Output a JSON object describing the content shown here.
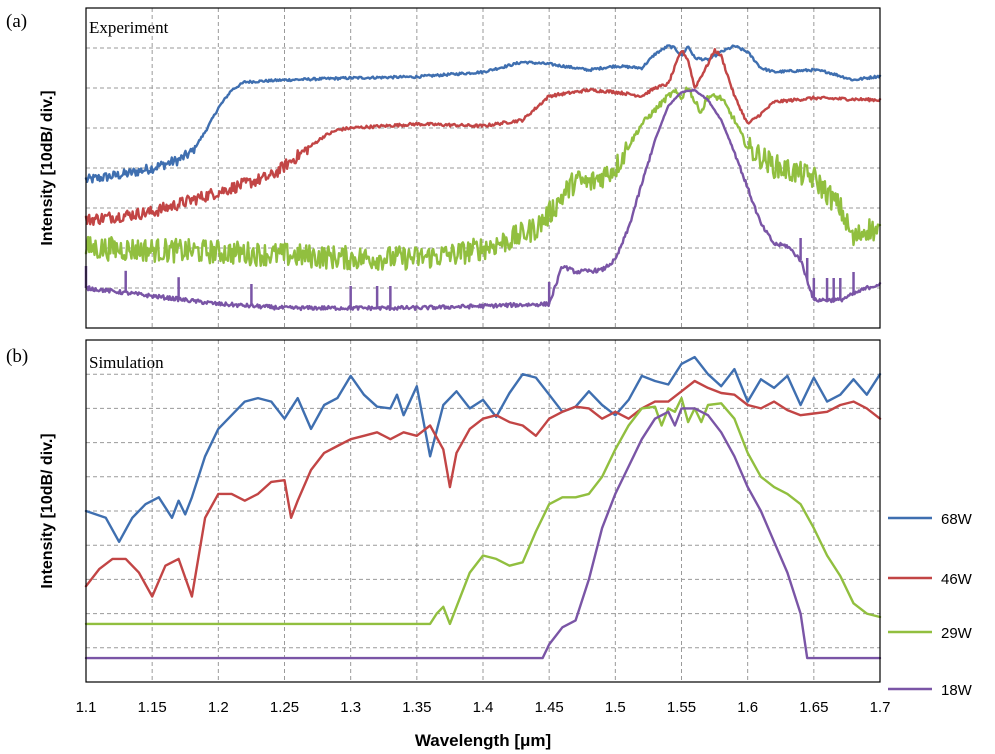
{
  "panels": {
    "a": {
      "letter": "(a)",
      "title": "Experiment"
    },
    "b": {
      "letter": "(b)",
      "title": "Simulation"
    }
  },
  "colors": {
    "68W": "#3f6fb0",
    "46W": "#c24545",
    "29W": "#91bf3f",
    "18W": "#7a55a6"
  },
  "legend": {
    "labels": [
      "68W",
      "46W",
      "29W",
      "18W"
    ]
  },
  "chart_data": [
    {
      "type": "line",
      "panel": "(a)",
      "title": "Experiment",
      "xlabel": "",
      "ylabel": "Intensity [10dB/ div.]",
      "xlim": [
        1.1,
        1.7
      ],
      "ylim": [
        -8,
        0
      ],
      "x_ticks": [
        1.1,
        1.15,
        1.2,
        1.25,
        1.3,
        1.35,
        1.4,
        1.45,
        1.5,
        1.55,
        1.6,
        1.65,
        1.7
      ],
      "grid": true,
      "series": [
        {
          "name": "68W",
          "noise": 0.25,
          "x": [
            1.1,
            1.13,
            1.15,
            1.17,
            1.18,
            1.19,
            1.2,
            1.21,
            1.22,
            1.25,
            1.3,
            1.35,
            1.4,
            1.43,
            1.45,
            1.48,
            1.5,
            1.52,
            1.53,
            1.54,
            1.545,
            1.55,
            1.555,
            1.56,
            1.57,
            1.58,
            1.59,
            1.6,
            1.61,
            1.62,
            1.65,
            1.66,
            1.68,
            1.69,
            1.7
          ],
          "y": [
            -4.3,
            -4.15,
            -4.0,
            -3.8,
            -3.6,
            -3.1,
            -2.5,
            -2.05,
            -1.85,
            -1.8,
            -1.75,
            -1.72,
            -1.6,
            -1.35,
            -1.4,
            -1.55,
            -1.45,
            -1.5,
            -1.15,
            -0.95,
            -1.0,
            -1.2,
            -0.95,
            -1.25,
            -1.3,
            -1.1,
            -0.95,
            -1.1,
            -1.5,
            -1.6,
            -1.55,
            -1.6,
            -1.8,
            -1.75,
            -1.7
          ]
        },
        {
          "name": "46W",
          "noise": 0.3,
          "x": [
            1.1,
            1.15,
            1.18,
            1.2,
            1.22,
            1.24,
            1.25,
            1.27,
            1.28,
            1.29,
            1.3,
            1.35,
            1.4,
            1.43,
            1.45,
            1.48,
            1.5,
            1.52,
            1.53,
            1.54,
            1.55,
            1.555,
            1.56,
            1.57,
            1.575,
            1.58,
            1.59,
            1.6,
            1.61,
            1.62,
            1.65,
            1.7
          ],
          "y": [
            -5.3,
            -5.1,
            -4.8,
            -4.6,
            -4.4,
            -4.2,
            -3.95,
            -3.45,
            -3.2,
            -3.05,
            -3.0,
            -2.9,
            -2.95,
            -2.8,
            -2.2,
            -2.05,
            -2.1,
            -2.2,
            -2.0,
            -1.9,
            -1.05,
            -1.3,
            -2.0,
            -1.4,
            -1.05,
            -1.2,
            -2.2,
            -2.9,
            -2.65,
            -2.35,
            -2.25,
            -2.3
          ]
        },
        {
          "name": "29W",
          "noise": 0.6,
          "x": [
            1.1,
            1.2,
            1.3,
            1.35,
            1.38,
            1.4,
            1.42,
            1.44,
            1.45,
            1.46,
            1.47,
            1.48,
            1.5,
            1.52,
            1.54,
            1.545,
            1.55,
            1.555,
            1.56,
            1.565,
            1.57,
            1.58,
            1.59,
            1.6,
            1.62,
            1.65,
            1.67,
            1.68,
            1.69,
            1.7
          ],
          "y": [
            -6.0,
            -6.1,
            -6.25,
            -6.25,
            -6.15,
            -6.0,
            -5.8,
            -5.5,
            -5.15,
            -4.7,
            -4.3,
            -4.4,
            -4.0,
            -2.9,
            -2.2,
            -2.1,
            -2.25,
            -1.95,
            -2.35,
            -2.6,
            -2.2,
            -2.25,
            -2.8,
            -3.5,
            -3.95,
            -4.25,
            -5.0,
            -5.8,
            -5.5,
            -5.6
          ]
        },
        {
          "name": "18W",
          "noise": 0.1,
          "spikes": [
            1.1,
            1.13,
            1.17,
            1.225,
            1.3,
            1.32,
            1.33,
            1.45,
            1.64,
            1.645,
            1.65,
            1.66,
            1.665,
            1.67,
            1.68
          ],
          "x": [
            1.1,
            1.15,
            1.2,
            1.25,
            1.3,
            1.35,
            1.4,
            1.45,
            1.46,
            1.47,
            1.49,
            1.5,
            1.51,
            1.52,
            1.53,
            1.54,
            1.55,
            1.56,
            1.57,
            1.58,
            1.59,
            1.6,
            1.61,
            1.62,
            1.63,
            1.64,
            1.65,
            1.67,
            1.69,
            1.7
          ],
          "y": [
            -7.0,
            -7.2,
            -7.4,
            -7.5,
            -7.5,
            -7.5,
            -7.45,
            -7.4,
            -6.45,
            -6.6,
            -6.55,
            -6.3,
            -5.5,
            -4.4,
            -3.3,
            -2.45,
            -2.1,
            -2.05,
            -2.3,
            -2.8,
            -3.6,
            -4.5,
            -5.4,
            -5.9,
            -5.95,
            -6.3,
            -7.3,
            -7.3,
            -7.0,
            -6.9
          ]
        }
      ]
    },
    {
      "type": "line",
      "panel": "(b)",
      "title": "Simulation",
      "xlabel": "Wavelength [μm]",
      "ylabel": "Intensity [10dB/ div.]",
      "xlim": [
        1.1,
        1.7
      ],
      "ylim": [
        -10,
        0
      ],
      "x_ticks": [
        1.1,
        1.15,
        1.2,
        1.25,
        1.3,
        1.35,
        1.4,
        1.45,
        1.5,
        1.55,
        1.6,
        1.65,
        1.7
      ],
      "grid": true,
      "series": [
        {
          "name": "68W",
          "x": [
            1.1,
            1.115,
            1.125,
            1.135,
            1.145,
            1.155,
            1.165,
            1.17,
            1.175,
            1.18,
            1.19,
            1.2,
            1.21,
            1.22,
            1.23,
            1.24,
            1.25,
            1.26,
            1.27,
            1.28,
            1.29,
            1.3,
            1.31,
            1.32,
            1.33,
            1.335,
            1.34,
            1.35,
            1.36,
            1.37,
            1.38,
            1.39,
            1.4,
            1.41,
            1.42,
            1.43,
            1.44,
            1.45,
            1.46,
            1.47,
            1.48,
            1.49,
            1.5,
            1.51,
            1.52,
            1.53,
            1.54,
            1.55,
            1.56,
            1.57,
            1.58,
            1.59,
            1.6,
            1.61,
            1.62,
            1.63,
            1.64,
            1.65,
            1.66,
            1.67,
            1.68,
            1.69,
            1.7
          ],
          "y": [
            -5.0,
            -5.2,
            -5.9,
            -5.2,
            -4.8,
            -4.6,
            -5.2,
            -4.7,
            -5.1,
            -4.6,
            -3.4,
            -2.6,
            -2.2,
            -1.8,
            -1.7,
            -1.8,
            -2.3,
            -1.7,
            -2.6,
            -1.9,
            -1.7,
            -1.05,
            -1.6,
            -1.95,
            -2.0,
            -1.6,
            -2.2,
            -1.35,
            -3.4,
            -1.9,
            -1.5,
            -2.0,
            -1.75,
            -2.25,
            -1.55,
            -1.0,
            -1.1,
            -1.6,
            -2.1,
            -1.95,
            -1.5,
            -1.9,
            -2.2,
            -1.75,
            -1.05,
            -1.2,
            -1.3,
            -0.7,
            -0.5,
            -1.0,
            -1.35,
            -0.85,
            -1.8,
            -1.15,
            -1.4,
            -1.05,
            -1.9,
            -1.1,
            -1.8,
            -1.6,
            -1.15,
            -1.6,
            -1.0
          ]
        },
        {
          "name": "46W",
          "x": [
            1.1,
            1.11,
            1.12,
            1.13,
            1.14,
            1.15,
            1.16,
            1.17,
            1.18,
            1.19,
            1.2,
            1.21,
            1.22,
            1.23,
            1.24,
            1.25,
            1.255,
            1.26,
            1.27,
            1.28,
            1.29,
            1.3,
            1.31,
            1.32,
            1.33,
            1.34,
            1.35,
            1.36,
            1.37,
            1.375,
            1.38,
            1.39,
            1.4,
            1.41,
            1.42,
            1.43,
            1.44,
            1.45,
            1.46,
            1.47,
            1.48,
            1.49,
            1.5,
            1.51,
            1.52,
            1.53,
            1.54,
            1.55,
            1.56,
            1.57,
            1.58,
            1.59,
            1.6,
            1.61,
            1.62,
            1.63,
            1.64,
            1.65,
            1.66,
            1.67,
            1.68,
            1.69,
            1.7
          ],
          "y": [
            -7.2,
            -6.7,
            -6.4,
            -6.4,
            -6.8,
            -7.5,
            -6.6,
            -6.4,
            -7.5,
            -5.2,
            -4.5,
            -4.5,
            -4.7,
            -4.5,
            -4.15,
            -4.1,
            -5.2,
            -4.7,
            -3.8,
            -3.3,
            -3.1,
            -2.9,
            -2.8,
            -2.7,
            -2.9,
            -2.7,
            -2.8,
            -2.5,
            -3.2,
            -4.3,
            -3.3,
            -2.6,
            -2.3,
            -2.2,
            -2.4,
            -2.5,
            -2.8,
            -2.3,
            -2.1,
            -1.95,
            -2.0,
            -2.3,
            -2.1,
            -2.3,
            -2.0,
            -1.8,
            -1.8,
            -1.5,
            -1.2,
            -1.4,
            -1.55,
            -1.6,
            -1.9,
            -2.0,
            -1.8,
            -2.05,
            -2.2,
            -2.15,
            -2.1,
            -1.9,
            -1.8,
            -2.0,
            -2.3
          ]
        },
        {
          "name": "29W",
          "x": [
            1.1,
            1.2,
            1.3,
            1.36,
            1.365,
            1.37,
            1.375,
            1.38,
            1.39,
            1.4,
            1.41,
            1.42,
            1.43,
            1.44,
            1.45,
            1.46,
            1.47,
            1.48,
            1.49,
            1.5,
            1.51,
            1.52,
            1.53,
            1.535,
            1.54,
            1.545,
            1.55,
            1.555,
            1.56,
            1.565,
            1.57,
            1.58,
            1.59,
            1.6,
            1.61,
            1.62,
            1.63,
            1.64,
            1.65,
            1.66,
            1.67,
            1.68,
            1.69,
            1.7
          ],
          "y": [
            -8.3,
            -8.3,
            -8.3,
            -8.3,
            -8.0,
            -7.8,
            -8.3,
            -7.8,
            -6.8,
            -6.3,
            -6.4,
            -6.6,
            -6.5,
            -5.6,
            -4.8,
            -4.6,
            -4.6,
            -4.5,
            -4.0,
            -3.2,
            -2.5,
            -2.0,
            -1.95,
            -2.5,
            -2.0,
            -2.1,
            -1.7,
            -2.4,
            -2.0,
            -2.4,
            -1.9,
            -1.85,
            -2.3,
            -3.3,
            -4.0,
            -4.3,
            -4.5,
            -4.8,
            -5.5,
            -6.3,
            -6.9,
            -7.7,
            -8.0,
            -8.1
          ]
        },
        {
          "name": "18W",
          "x": [
            1.1,
            1.2,
            1.3,
            1.4,
            1.445,
            1.45,
            1.46,
            1.47,
            1.48,
            1.49,
            1.5,
            1.51,
            1.52,
            1.53,
            1.54,
            1.545,
            1.55,
            1.56,
            1.57,
            1.58,
            1.59,
            1.6,
            1.61,
            1.62,
            1.63,
            1.64,
            1.645,
            1.65,
            1.7
          ],
          "y": [
            -9.3,
            -9.3,
            -9.3,
            -9.3,
            -9.3,
            -8.9,
            -8.4,
            -8.2,
            -7.0,
            -5.5,
            -4.5,
            -3.7,
            -2.9,
            -2.3,
            -2.1,
            -2.5,
            -2.0,
            -2.0,
            -2.2,
            -2.7,
            -3.4,
            -4.3,
            -5.0,
            -5.9,
            -6.8,
            -8.0,
            -9.3,
            -9.3,
            -9.3
          ]
        }
      ]
    }
  ]
}
